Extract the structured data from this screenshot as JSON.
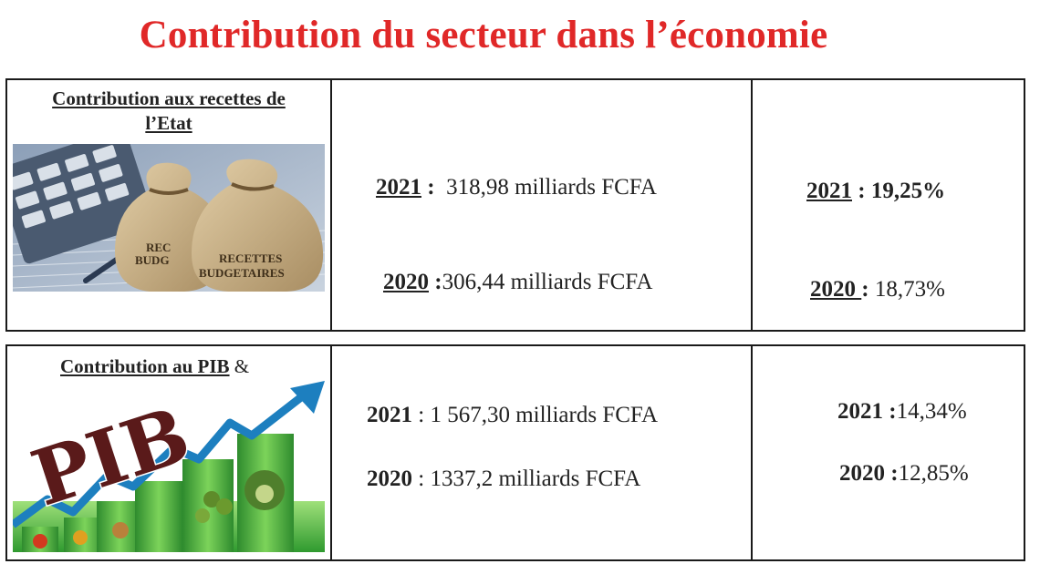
{
  "title": "Contribution du secteur dans l’économie",
  "colors": {
    "title": "#e02828",
    "border": "#1a1a1a"
  },
  "section1": {
    "label_line1": "Contribution aux recettes de",
    "label_line2": "l’Etat",
    "image_icon": "money-bags-calculator-image",
    "bag_text_front_1": "RECETTES",
    "bag_text_front_2": "BUDGETAIRES",
    "bag_text_back_1": "REC",
    "bag_text_back_2": "BUDG",
    "amounts": [
      {
        "year": "2021",
        "sep": " :",
        "value": "  318,98 milliards FCFA"
      },
      {
        "year": "2020",
        "sep": " :",
        "value": "306,44 milliards FCFA"
      }
    ],
    "percents": [
      {
        "year": "2021",
        "sep": " : ",
        "value": "19,25%"
      },
      {
        "year": "2020 ",
        "sep": ": ",
        "value": "18,73%"
      }
    ]
  },
  "section2": {
    "label": "Contribution au PIB",
    "label_suffix": " &",
    "image_icon": "pib-growth-chart-image",
    "pib_text": "PIB",
    "amounts": [
      {
        "year": "2021",
        "sep": " : ",
        "value": "1 567,30 milliards FCFA"
      },
      {
        "year": "2020",
        "sep": " : ",
        "value": "1337,2 milliards FCFA"
      }
    ],
    "percents": [
      {
        "year": "2021",
        "sep": " :",
        "value": "14,34%"
      },
      {
        "year": "2020",
        "sep": " :",
        "value": "12,85%"
      }
    ]
  }
}
